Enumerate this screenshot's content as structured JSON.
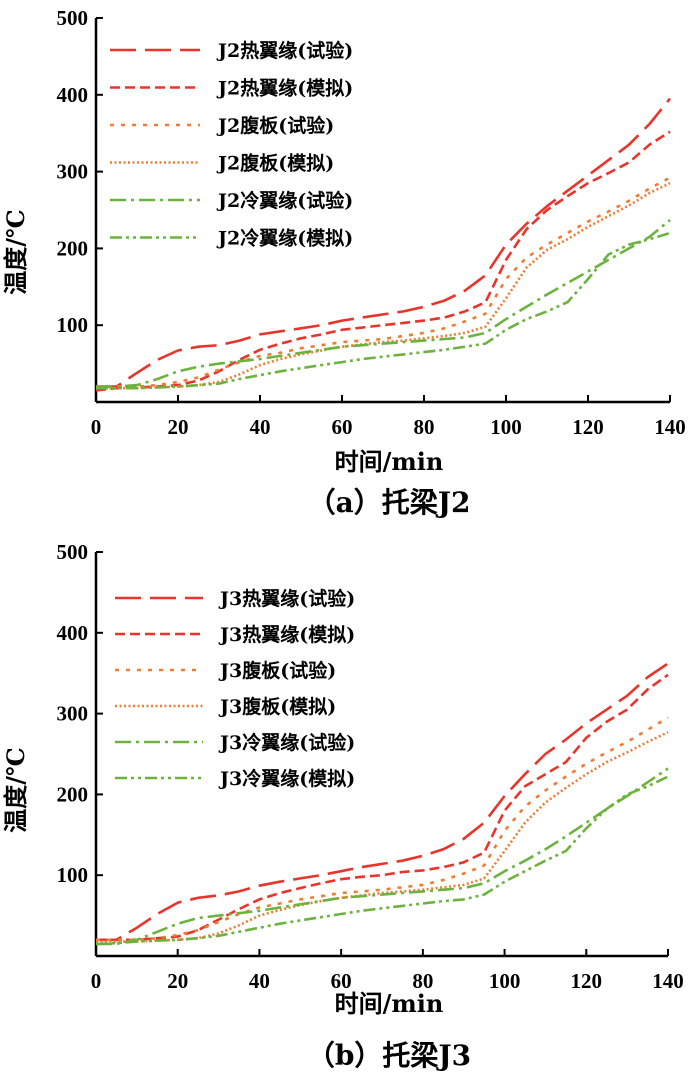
{
  "chart_data": [
    {
      "type": "line",
      "caption": "（a）托梁J2",
      "xlabel": "时间/min",
      "ylabel": "温度/℃",
      "xlim": [
        0,
        140
      ],
      "ylim": [
        0,
        500
      ],
      "xticks": [
        0,
        20,
        40,
        60,
        80,
        100,
        120,
        140
      ],
      "yticks": [
        100,
        200,
        300,
        400,
        500
      ],
      "legend_position": "top-left",
      "grid": false,
      "series": [
        {
          "name": "J2热翼缘(试验)",
          "color": "#e8352b",
          "dash": "long",
          "x": [
            0,
            5,
            10,
            15,
            20,
            25,
            30,
            35,
            40,
            45,
            50,
            55,
            60,
            65,
            70,
            75,
            80,
            85,
            90,
            95,
            100,
            105,
            110,
            115,
            120,
            125,
            130,
            135,
            140
          ],
          "y": [
            20,
            20,
            38,
            55,
            67,
            72,
            74,
            80,
            88,
            92,
            96,
            100,
            106,
            110,
            114,
            118,
            124,
            132,
            145,
            165,
            205,
            232,
            255,
            275,
            295,
            315,
            335,
            362,
            395
          ]
        },
        {
          "name": "J2热翼缘(模拟)",
          "color": "#e8352b",
          "dash": "short",
          "x": [
            0,
            5,
            10,
            15,
            20,
            25,
            30,
            35,
            40,
            45,
            50,
            55,
            60,
            65,
            70,
            75,
            80,
            85,
            90,
            95,
            100,
            105,
            110,
            115,
            120,
            125,
            130,
            135,
            140
          ],
          "y": [
            15,
            18,
            19,
            20,
            22,
            28,
            40,
            55,
            68,
            76,
            83,
            88,
            94,
            97,
            100,
            103,
            106,
            110,
            118,
            130,
            185,
            225,
            250,
            268,
            285,
            298,
            312,
            335,
            352
          ]
        },
        {
          "name": "J2腹板(试验)",
          "color": "#f07c33",
          "dash": "dot-space",
          "x": [
            0,
            5,
            10,
            15,
            20,
            25,
            30,
            35,
            40,
            45,
            50,
            55,
            60,
            65,
            70,
            75,
            80,
            85,
            90,
            95,
            100,
            105,
            110,
            115,
            120,
            125,
            130,
            135,
            140
          ],
          "y": [
            20,
            20,
            20,
            22,
            26,
            32,
            42,
            52,
            60,
            64,
            70,
            74,
            78,
            80,
            82,
            86,
            90,
            96,
            105,
            115,
            160,
            188,
            205,
            220,
            235,
            248,
            262,
            278,
            292
          ]
        },
        {
          "name": "J2腹板(模拟)",
          "color": "#f07c33",
          "dash": "dot",
          "x": [
            0,
            5,
            10,
            15,
            20,
            25,
            30,
            35,
            40,
            45,
            50,
            55,
            60,
            65,
            70,
            75,
            80,
            85,
            90,
            95,
            100,
            105,
            110,
            115,
            120,
            125,
            130,
            135,
            140
          ],
          "y": [
            18,
            18,
            18,
            19,
            20,
            22,
            26,
            36,
            48,
            56,
            62,
            67,
            72,
            75,
            78,
            80,
            83,
            86,
            90,
            98,
            135,
            175,
            198,
            212,
            228,
            242,
            256,
            272,
            285
          ]
        },
        {
          "name": "J2冷翼缘(试验)",
          "color": "#6cb33e",
          "dash": "dash-dot",
          "x": [
            0,
            5,
            10,
            15,
            20,
            25,
            30,
            35,
            40,
            45,
            50,
            55,
            60,
            65,
            70,
            75,
            80,
            85,
            90,
            95,
            100,
            105,
            110,
            115,
            120,
            125,
            130,
            135,
            140
          ],
          "y": [
            20,
            20,
            22,
            30,
            40,
            46,
            50,
            53,
            56,
            60,
            64,
            68,
            72,
            74,
            76,
            78,
            80,
            82,
            84,
            90,
            108,
            124,
            140,
            155,
            170,
            185,
            200,
            215,
            237
          ]
        },
        {
          "name": "J2冷翼缘(模拟)",
          "color": "#6cb33e",
          "dash": "dash-dot-dot",
          "x": [
            0,
            5,
            10,
            15,
            20,
            25,
            30,
            35,
            40,
            45,
            50,
            55,
            60,
            65,
            70,
            75,
            80,
            85,
            90,
            95,
            100,
            105,
            110,
            115,
            120,
            125,
            130,
            135,
            140
          ],
          "y": [
            18,
            18,
            18,
            19,
            20,
            22,
            24,
            30,
            35,
            40,
            44,
            48,
            52,
            56,
            59,
            62,
            65,
            68,
            72,
            76,
            94,
            108,
            118,
            130,
            160,
            192,
            205,
            212,
            220
          ]
        }
      ]
    },
    {
      "type": "line",
      "caption": "（b）托梁J3",
      "xlabel": "时间/min",
      "ylabel": "温度/℃",
      "xlim": [
        0,
        140
      ],
      "ylim": [
        0,
        500
      ],
      "xticks": [
        0,
        20,
        40,
        60,
        80,
        100,
        120,
        140
      ],
      "yticks": [
        100,
        200,
        300,
        400,
        500
      ],
      "legend_position": "top-left",
      "grid": false,
      "series": [
        {
          "name": "J3热翼缘(试验)",
          "color": "#e8352b",
          "dash": "long",
          "x": [
            0,
            5,
            10,
            15,
            20,
            25,
            30,
            35,
            40,
            45,
            50,
            55,
            60,
            65,
            70,
            75,
            80,
            85,
            90,
            95,
            100,
            105,
            110,
            115,
            120,
            125,
            130,
            135,
            140
          ],
          "y": [
            20,
            20,
            35,
            52,
            66,
            72,
            75,
            80,
            87,
            92,
            96,
            100,
            105,
            110,
            114,
            118,
            124,
            132,
            145,
            165,
            198,
            225,
            250,
            268,
            288,
            305,
            322,
            345,
            362
          ]
        },
        {
          "name": "J3热翼缘(模拟)",
          "color": "#e8352b",
          "dash": "short",
          "x": [
            0,
            5,
            10,
            15,
            20,
            25,
            30,
            35,
            40,
            45,
            50,
            55,
            60,
            65,
            70,
            75,
            80,
            85,
            90,
            95,
            100,
            105,
            110,
            115,
            120,
            125,
            130,
            135,
            140
          ],
          "y": [
            20,
            20,
            20,
            22,
            24,
            32,
            45,
            58,
            70,
            78,
            84,
            90,
            95,
            98,
            100,
            104,
            106,
            110,
            116,
            128,
            180,
            210,
            225,
            240,
            270,
            290,
            305,
            330,
            348
          ]
        },
        {
          "name": "J3腹板(试验)",
          "color": "#f07c33",
          "dash": "dot-space",
          "x": [
            0,
            5,
            10,
            15,
            20,
            25,
            30,
            35,
            40,
            45,
            50,
            55,
            60,
            65,
            70,
            75,
            80,
            85,
            90,
            95,
            100,
            105,
            110,
            115,
            120,
            125,
            130,
            135,
            140
          ],
          "y": [
            20,
            20,
            20,
            22,
            26,
            32,
            42,
            52,
            60,
            65,
            70,
            74,
            78,
            80,
            82,
            85,
            88,
            94,
            102,
            112,
            155,
            185,
            205,
            222,
            238,
            252,
            265,
            280,
            295
          ]
        },
        {
          "name": "J3腹板(模拟)",
          "color": "#f07c33",
          "dash": "dot",
          "x": [
            0,
            5,
            10,
            15,
            20,
            25,
            30,
            35,
            40,
            45,
            50,
            55,
            60,
            65,
            70,
            75,
            80,
            85,
            90,
            95,
            100,
            105,
            110,
            115,
            120,
            125,
            130,
            135,
            140
          ],
          "y": [
            18,
            18,
            18,
            19,
            20,
            22,
            28,
            38,
            50,
            57,
            63,
            68,
            72,
            75,
            78,
            80,
            82,
            85,
            88,
            96,
            130,
            165,
            190,
            208,
            225,
            240,
            252,
            265,
            277
          ]
        },
        {
          "name": "J3冷翼缘(试验)",
          "color": "#6cb33e",
          "dash": "dash-dot",
          "x": [
            0,
            5,
            10,
            15,
            20,
            25,
            30,
            35,
            40,
            45,
            50,
            55,
            60,
            65,
            70,
            75,
            80,
            85,
            90,
            95,
            100,
            105,
            110,
            115,
            120,
            125,
            130,
            135,
            140
          ],
          "y": [
            15,
            15,
            20,
            30,
            40,
            47,
            50,
            53,
            56,
            60,
            64,
            68,
            72,
            74,
            76,
            78,
            80,
            82,
            84,
            90,
            105,
            118,
            132,
            148,
            165,
            182,
            198,
            215,
            232
          ]
        },
        {
          "name": "J3冷翼缘(模拟)",
          "color": "#6cb33e",
          "dash": "dash-dot-dot",
          "x": [
            0,
            5,
            10,
            15,
            20,
            25,
            30,
            35,
            40,
            45,
            50,
            55,
            60,
            65,
            70,
            75,
            80,
            85,
            90,
            95,
            100,
            105,
            110,
            115,
            120,
            125,
            130,
            135,
            140
          ],
          "y": [
            15,
            16,
            18,
            19,
            20,
            22,
            25,
            30,
            35,
            40,
            44,
            48,
            52,
            56,
            59,
            62,
            65,
            68,
            70,
            76,
            92,
            105,
            118,
            130,
            158,
            182,
            200,
            210,
            222
          ]
        }
      ]
    }
  ]
}
